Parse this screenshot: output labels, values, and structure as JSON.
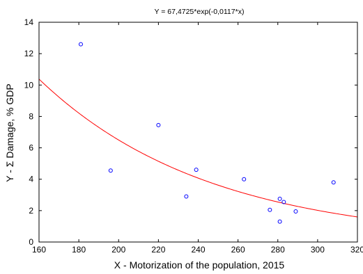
{
  "chart_data": {
    "type": "scatter",
    "title": "Y = 67,4725*exp(-0,0117*x)",
    "xlabel": "X - Motorization of the population, 2015",
    "ylabel": "Y - Σ Damage, % GDP",
    "xlim": [
      160,
      320
    ],
    "ylim": [
      0,
      14
    ],
    "xticks": [
      160,
      180,
      200,
      220,
      240,
      260,
      280,
      300,
      320
    ],
    "yticks": [
      0,
      2,
      4,
      6,
      8,
      10,
      12,
      14
    ],
    "grid": false,
    "legend": "none",
    "series": [
      {
        "points": [
          {
            "x": 181,
            "y": 12.6
          },
          {
            "x": 196,
            "y": 4.55
          },
          {
            "x": 220,
            "y": 7.45
          },
          {
            "x": 234,
            "y": 2.9
          },
          {
            "x": 239,
            "y": 4.6
          },
          {
            "x": 263,
            "y": 4.0
          },
          {
            "x": 276,
            "y": 2.05
          },
          {
            "x": 281,
            "y": 2.75
          },
          {
            "x": 281,
            "y": 1.3
          },
          {
            "x": 283,
            "y": 2.55
          },
          {
            "x": 289,
            "y": 1.95
          },
          {
            "x": 308,
            "y": 3.8
          }
        ],
        "color": "#0000ff"
      }
    ],
    "fit_curve": {
      "a": 67.4725,
      "b": -0.0117,
      "color": "#ff0000"
    }
  }
}
